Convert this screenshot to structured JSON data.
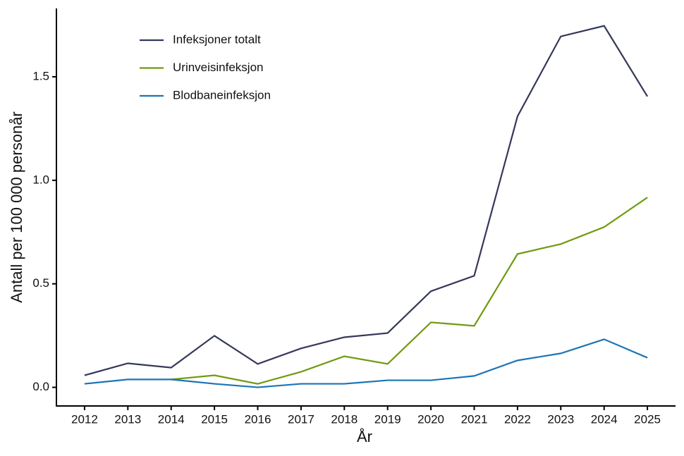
{
  "chart_data": {
    "type": "line",
    "xlabel": "År",
    "ylabel": "Antall per 100 000 personår",
    "x": [
      2012,
      2013,
      2014,
      2015,
      2016,
      2017,
      2018,
      2019,
      2020,
      2021,
      2022,
      2023,
      2024,
      2025
    ],
    "xlim": [
      2011.35,
      2025.65
    ],
    "xticks": [
      2012,
      2013,
      2014,
      2015,
      2016,
      2017,
      2018,
      2019,
      2020,
      2021,
      2022,
      2023,
      2024,
      2025
    ],
    "ylim": [
      -0.09,
      1.83
    ],
    "yticks": [
      {
        "value": 0,
        "label": "0.0"
      },
      0.5,
      {
        "value": 1,
        "label": "1.0"
      },
      1.5
    ],
    "grid": false,
    "legend": "upper left",
    "series": [
      {
        "name": "Infeksjoner totalt",
        "color": "#35375a",
        "values": [
          0.058,
          0.116,
          0.095,
          0.249,
          0.113,
          0.188,
          0.242,
          0.262,
          0.464,
          0.539,
          1.309,
          1.695,
          1.746,
          1.405
        ]
      },
      {
        "name": "Urinveisinfeksjon",
        "color": "#6f9a0e",
        "values": [
          null,
          null,
          0.038,
          0.058,
          0.017,
          0.075,
          0.15,
          0.113,
          0.314,
          0.297,
          0.644,
          0.692,
          0.774,
          0.917
        ]
      },
      {
        "name": "Blodbaneinfeksjon",
        "color": "#1b75b5",
        "values": [
          0.017,
          0.038,
          0.038,
          0.017,
          0,
          0.017,
          0.017,
          0.034,
          0.034,
          0.055,
          0.13,
          0.164,
          0.232,
          0.143
        ]
      }
    ]
  }
}
